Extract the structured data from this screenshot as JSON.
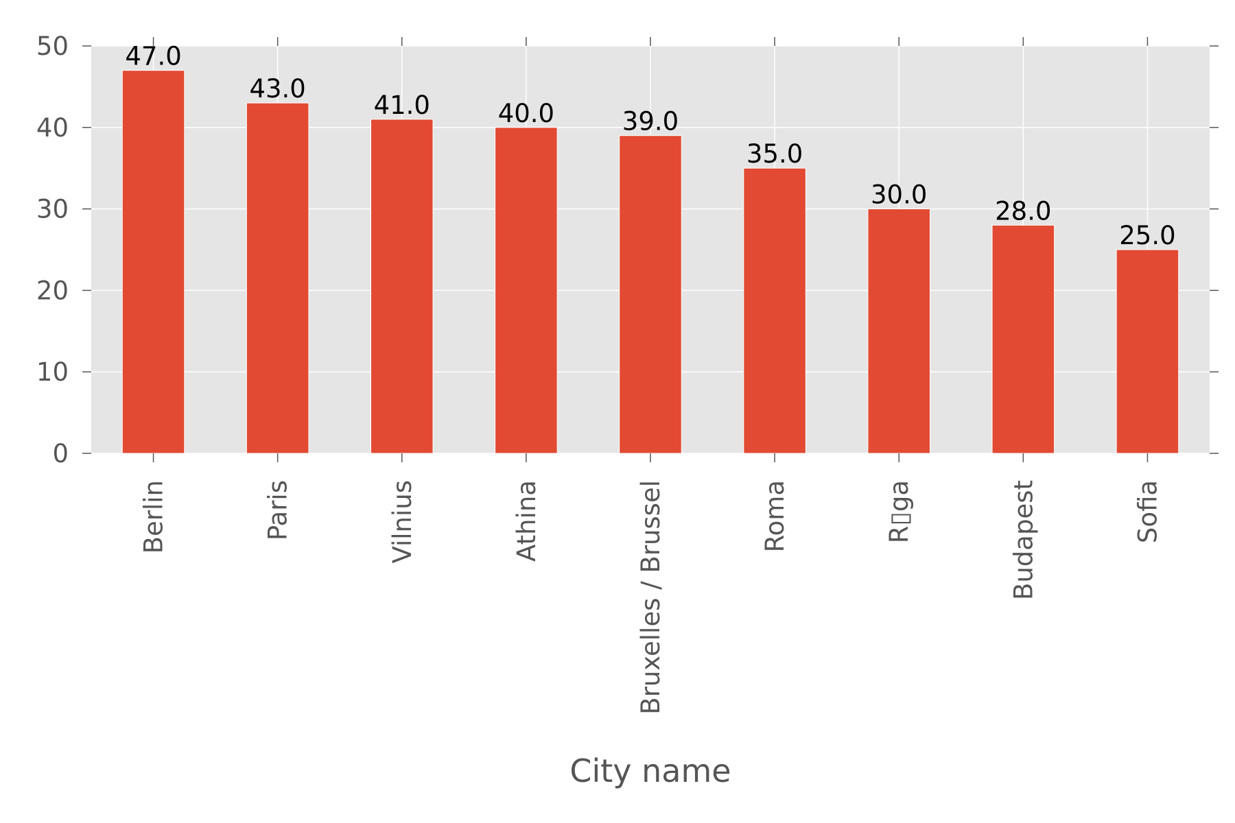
{
  "chart_data": {
    "type": "bar",
    "categories": [
      "Berlin",
      "Paris",
      "Vilnius",
      "Athina",
      "Bruxelles / Brussel",
      "Roma",
      "R▯ga",
      "Budapest",
      "Sofia"
    ],
    "values": [
      47.0,
      43.0,
      41.0,
      40.0,
      39.0,
      35.0,
      30.0,
      28.0,
      25.0
    ],
    "value_labels": [
      "47.0",
      "43.0",
      "41.0",
      "40.0",
      "39.0",
      "35.0",
      "30.0",
      "28.0",
      "25.0"
    ],
    "title": "",
    "xlabel": "City name",
    "ylabel": "",
    "ylim": [
      0,
      50
    ],
    "yticks": [
      0,
      10,
      20,
      30,
      40,
      50
    ],
    "ytick_labels": [
      "0",
      "10",
      "20",
      "30",
      "40",
      "50"
    ],
    "grid": true,
    "colors": {
      "bar": "#E24A33",
      "plot_background": "#E5E5E5",
      "grid": "#FFFFFF",
      "tick_text": "#555555",
      "bar_label_text": "#000000"
    }
  }
}
